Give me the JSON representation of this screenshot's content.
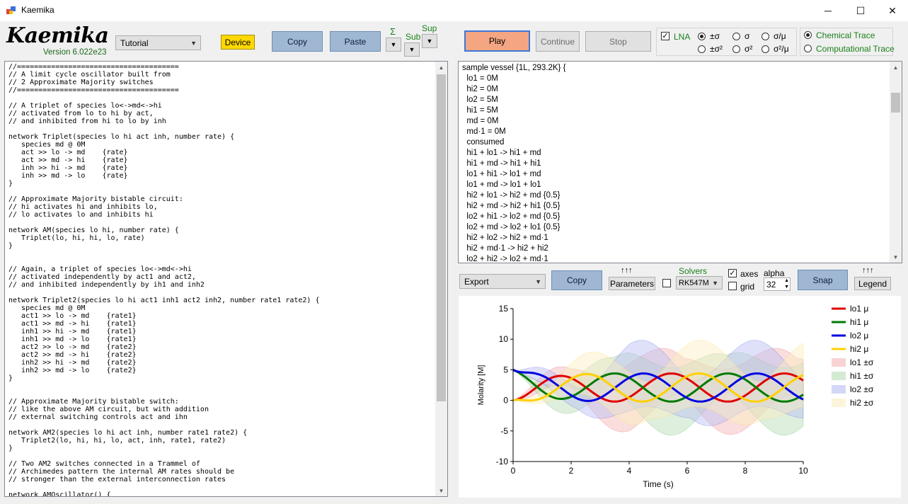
{
  "window": {
    "title": "Kaemika",
    "minimize": "─",
    "maximize": "☐",
    "close": "✕"
  },
  "app": {
    "logo": "Kaemika",
    "version": "Version 6.022e23"
  },
  "left_toolbar": {
    "sample_select": "Tutorial",
    "device_label": "Device",
    "copy_label": "Copy",
    "paste_label": "Paste",
    "sigma_label": "Σ",
    "sub_label": "Sub",
    "sup_label": "Sup"
  },
  "sim_toolbar": {
    "play_label": "Play",
    "continue_label": "Continue",
    "stop_label": "Stop",
    "lna_label": "LNA",
    "lna_checked": true,
    "radio_row1": [
      "±σ",
      "σ",
      "σ/μ"
    ],
    "radio_row2": [
      "±σ²",
      "σ²",
      "σ²/μ"
    ],
    "chemical_trace": "Chemical Trace",
    "computational_trace": "Computational Trace"
  },
  "editor_code": "//======================================\n// A limit cycle oscillator built from\n// 2 Approximate Majority switches\n//======================================\n\n// A triplet of species lo<->md<->hi\n// activated from lo to hi by act,\n// and inhibited from hi to lo by inh\n\nnetwork Triplet(species lo hi act inh, number rate) {\n   species md @ 0M\n   act >> lo -> md    {rate}\n   act >> md -> hi    {rate}\n   inh >> hi -> md    {rate}\n   inh >> md -> lo    {rate}\n}\n\n// Approximate Majority bistable circuit:\n// hi activates hi and inhibits lo,\n// lo activates lo and inhibits hi\n\nnetwork AM(species lo hi, number rate) {\n   Triplet(lo, hi, hi, lo, rate)\n}\n\n\n// Again, a triplet of species lo<->md<->hi\n// activated independently by act1 and act2,\n// and inhibited independently by ih1 and inh2\n\nnetwork Triplet2(species lo hi act1 inh1 act2 inh2, number rate1 rate2) {\n   species md @ 0M\n   act1 >> lo -> md    {rate1}\n   act1 >> md -> hi    {rate1}\n   inh1 >> hi -> md    {rate1}\n   inh1 >> md -> lo    {rate1}\n   act2 >> lo -> md    {rate2}\n   act2 >> md -> hi    {rate2}\n   inh2 >> hi -> md    {rate2}\n   inh2 >> md -> lo    {rate2}\n}\n\n\n// Approximate Majority bistable switch:\n// like the above AM circuit, but with addition\n// external switching controls act and ihn\n\nnetwork AM2(species lo hi act inh, number rate1 rate2) {\n   Triplet2(lo, hi, hi, lo, act, inh, rate1, rate2)\n}\n\n// Two AM2 switches connected in a Trammel of\n// Archimedes pattern the internal AM rates should be\n// stronger than the external interconnection rates\n\nnetwork AMOscillator() {",
  "vessel_text": "sample vessel {1L, 293.2K} {\n  lo1 = 0M\n  hi2 = 0M\n  lo2 = 5M\n  hi1 = 5M\n  md = 0M\n  md·1 = 0M\n  consumed\n  hi1 + lo1 -> hi1 + md\n  hi1 + md -> hi1 + hi1\n  lo1 + hi1 -> lo1 + md\n  lo1 + md -> lo1 + lo1\n  hi2 + lo1 -> hi2 + md {0.5}\n  hi2 + md -> hi2 + hi1 {0.5}\n  lo2 + hi1 -> lo2 + md {0.5}\n  lo2 + md -> lo2 + lo1 {0.5}\n  hi2 + lo2 -> hi2 + md·1\n  hi2 + md·1 -> hi2 + hi2\n  lo2 + hi2 -> lo2 + md·1",
  "plot_toolbar": {
    "export_label": "Export",
    "copy_label": "Copy",
    "arrows": "↑↑↑",
    "parameters_label": "Parameters",
    "solvers_label": "Solvers",
    "solver_value": "RK547M",
    "axes_label": "axes",
    "axes_checked": true,
    "grid_label": "grid",
    "grid_checked": false,
    "alpha_label": "alpha",
    "alpha_value": "32",
    "snap_label": "Snap",
    "legend_label": "Legend"
  },
  "chart_data": {
    "type": "line",
    "xlabel": "Time (s)",
    "ylabel": "Molarity [M]",
    "xlim": [
      0,
      10
    ],
    "ylim": [
      -10,
      15
    ],
    "xticks": [
      0,
      2,
      4,
      6,
      8,
      10
    ],
    "yticks": [
      -10,
      -5,
      0,
      5,
      10,
      15
    ],
    "series": [
      {
        "name": "lo1 μ",
        "color": "#e00000",
        "period": 3.9,
        "phase": 1.55,
        "start": 0
      },
      {
        "name": "hi1 μ",
        "color": "#007a00",
        "period": 3.9,
        "phase": 3.5,
        "start": 5
      },
      {
        "name": "lo2 μ",
        "color": "#0000e0",
        "period": 3.9,
        "phase": 4.5,
        "start": 5
      },
      {
        "name": "hi2 μ",
        "color": "#ffd000",
        "period": 3.9,
        "phase": 2.5,
        "start": 0
      }
    ],
    "bands": [
      {
        "name": "lo1 ±σ",
        "color": "#f4b6b6"
      },
      {
        "name": "hi1 ±σ",
        "color": "#b6dcb6"
      },
      {
        "name": "lo2 ±σ",
        "color": "#b8bdf4"
      },
      {
        "name": "hi2 ±σ",
        "color": "#fbeec0"
      }
    ]
  }
}
